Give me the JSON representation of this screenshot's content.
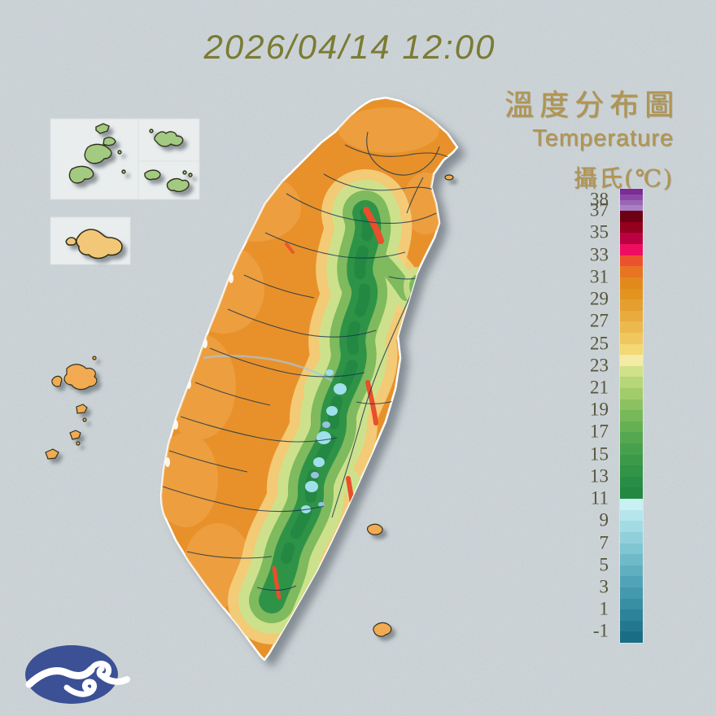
{
  "timestamp": "2026/04/14 12:00",
  "legend": {
    "title_zh": "溫度分布圖",
    "title_en": "Temperature",
    "unit_label": "攝氏(℃)",
    "text_color": "#b2954e"
  },
  "colorbar": {
    "top_value": 39,
    "bottom_value": -2,
    "tick_color": "#56553c",
    "ticks": [
      {
        "v": 38,
        "label": "38"
      },
      {
        "v": 37,
        "label": "37"
      },
      {
        "v": 35,
        "label": "35"
      },
      {
        "v": 33,
        "label": "33"
      },
      {
        "v": 31,
        "label": "31"
      },
      {
        "v": 29,
        "label": "29"
      },
      {
        "v": 27,
        "label": "27"
      },
      {
        "v": 25,
        "label": "25"
      },
      {
        "v": 23,
        "label": "23"
      },
      {
        "v": 21,
        "label": "21"
      },
      {
        "v": 19,
        "label": "19"
      },
      {
        "v": 17,
        "label": "17"
      },
      {
        "v": 15,
        "label": "15"
      },
      {
        "v": 13,
        "label": "13"
      },
      {
        "v": 11,
        "label": "11"
      },
      {
        "v": 9,
        "label": "9"
      },
      {
        "v": 7,
        "label": "7"
      },
      {
        "v": 5,
        "label": "5"
      },
      {
        "v": 3,
        "label": "3"
      },
      {
        "v": 1,
        "label": "1"
      },
      {
        "v": -1,
        "label": "-1"
      }
    ],
    "segments": [
      {
        "span": 0.5,
        "color": "#7c2c96"
      },
      {
        "span": 0.5,
        "color": "#8b49a6"
      },
      {
        "span": 0.5,
        "color": "#9a65b4"
      },
      {
        "span": 0.5,
        "color": "#a980c3"
      },
      {
        "span": 1,
        "color": "#6e0013"
      },
      {
        "span": 1,
        "color": "#94001d"
      },
      {
        "span": 1,
        "color": "#bc0041"
      },
      {
        "span": 1,
        "color": "#ee0e61"
      },
      {
        "span": 1,
        "color": "#ec512d"
      },
      {
        "span": 1,
        "color": "#e87423"
      },
      {
        "span": 1,
        "color": "#e18a1b"
      },
      {
        "span": 1,
        "color": "#e2941f"
      },
      {
        "span": 1,
        "color": "#e59f2e"
      },
      {
        "span": 1,
        "color": "#e9ab3e"
      },
      {
        "span": 1,
        "color": "#ecb94e"
      },
      {
        "span": 1,
        "color": "#f0c75f"
      },
      {
        "span": 1,
        "color": "#f3d873"
      },
      {
        "span": 1,
        "color": "#f4eba5"
      },
      {
        "span": 1,
        "color": "#cfe189"
      },
      {
        "span": 1,
        "color": "#b7d677"
      },
      {
        "span": 1,
        "color": "#a1cc6a"
      },
      {
        "span": 1,
        "color": "#8bc25f"
      },
      {
        "span": 1,
        "color": "#77b858"
      },
      {
        "span": 1,
        "color": "#65b053"
      },
      {
        "span": 1,
        "color": "#55a850"
      },
      {
        "span": 1,
        "color": "#47a04d"
      },
      {
        "span": 1,
        "color": "#3b9a4a"
      },
      {
        "span": 1,
        "color": "#319447"
      },
      {
        "span": 1,
        "color": "#298e45"
      },
      {
        "span": 1,
        "color": "#228842"
      },
      {
        "span": 1,
        "color": "#c9f0f3"
      },
      {
        "span": 1,
        "color": "#b5e6ec"
      },
      {
        "span": 1,
        "color": "#a2dbe4"
      },
      {
        "span": 1,
        "color": "#90d0db"
      },
      {
        "span": 1,
        "color": "#7fc5d2"
      },
      {
        "span": 1,
        "color": "#6ebac9"
      },
      {
        "span": 1,
        "color": "#5fafc0"
      },
      {
        "span": 1,
        "color": "#51a4b7"
      },
      {
        "span": 1,
        "color": "#4499ad"
      },
      {
        "span": 1,
        "color": "#388ea3"
      },
      {
        "span": 1,
        "color": "#2d8399"
      },
      {
        "span": 1,
        "color": "#23788f"
      },
      {
        "span": 1,
        "color": "#1a6d85"
      }
    ]
  },
  "map": {
    "sea_color": "#ccd4d8",
    "inset_box_color": "#e9edee",
    "palette": {
      "plain_orange": "#e8912a",
      "warm_orange_light": "#f2ab52",
      "foothill_yellow": "#f4d07e",
      "mountain_green_light": "#cde18c",
      "mountain_green": "#7fba5e",
      "mountain_green_dark": "#2f9347",
      "mountain_green_deep": "#238842",
      "peak_cyan": "#9fe0ea",
      "peak_blue": "#97c2e0",
      "river_blue": "#a8c8e0",
      "hot_red": "#ea4e2b",
      "island_green": "#a2ca80",
      "island_tan": "#f2c878",
      "island_outline": "#32321f",
      "boundary_line": "#14324e",
      "coast_stroke": "#ffffff",
      "logo_navy": "#3b5095"
    }
  }
}
